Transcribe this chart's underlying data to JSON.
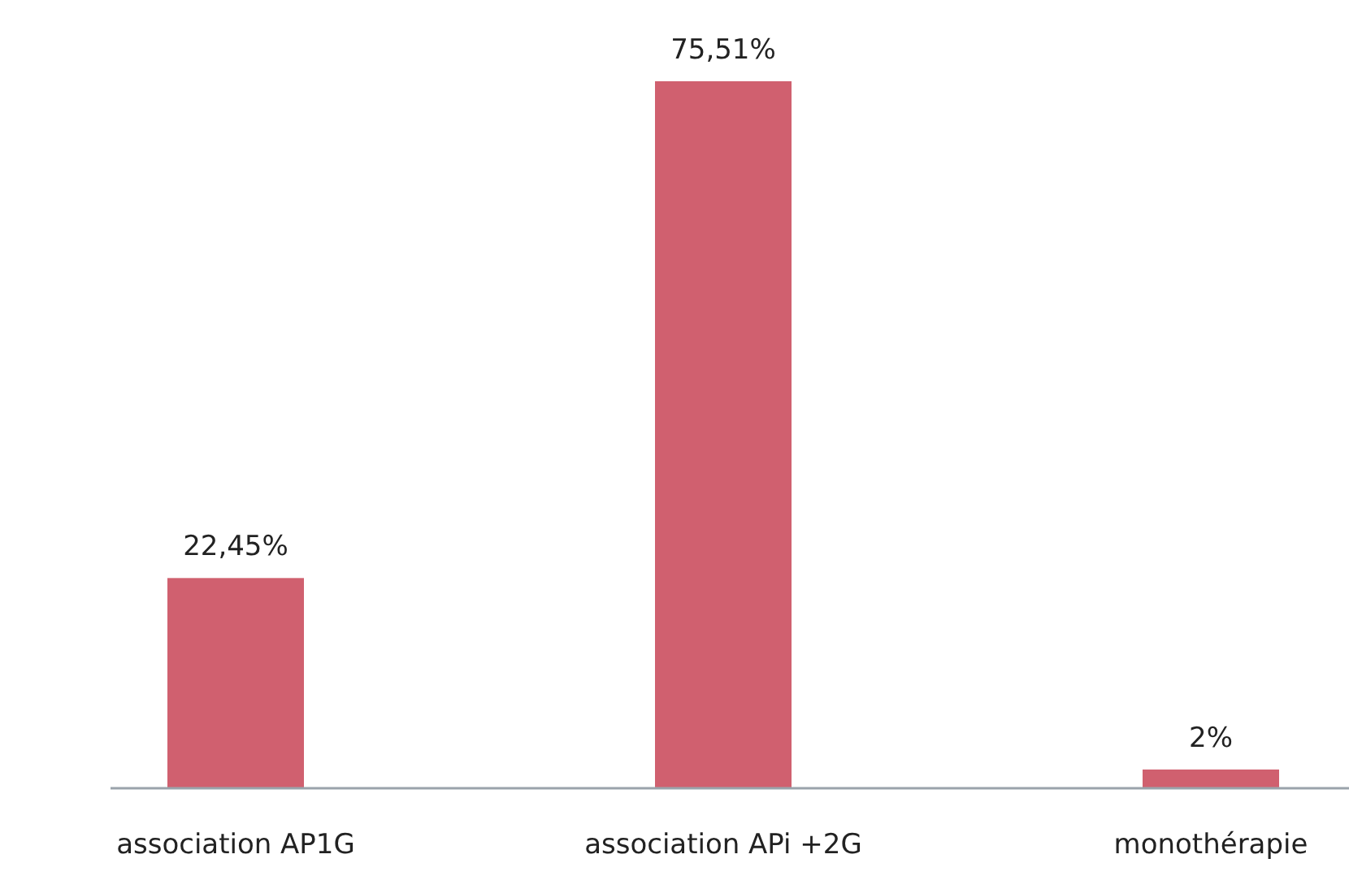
{
  "chart_data": {
    "type": "bar",
    "categories": [
      "association AP1G",
      "association APi +2G",
      "monothérapie"
    ],
    "values": [
      22.45,
      75.51,
      2
    ],
    "value_labels": [
      "22,45%",
      "75,51%",
      "2%"
    ],
    "color": "#d0606f"
  }
}
